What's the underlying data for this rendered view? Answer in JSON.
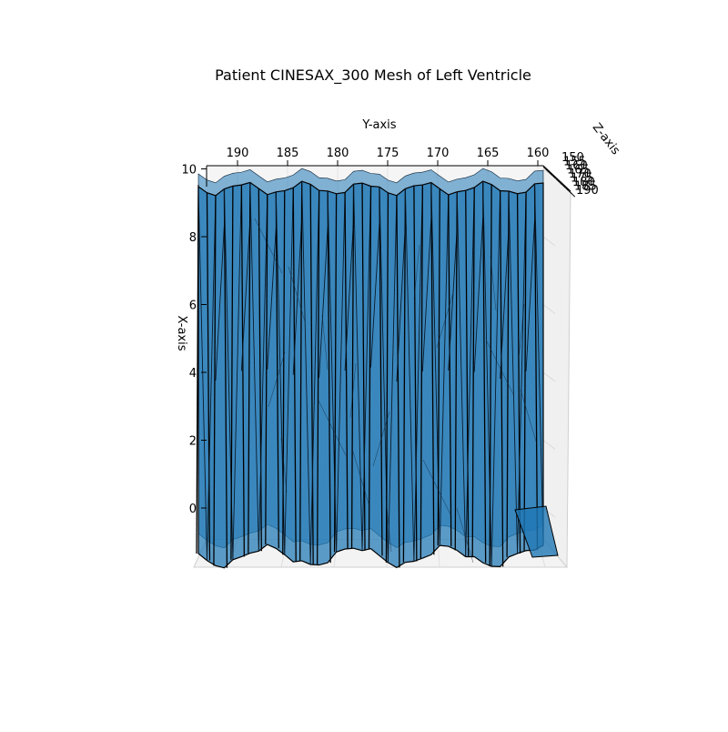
{
  "chart_data": {
    "type": "mesh3d",
    "title": "Patient CINESAX_300 Mesh of Left Ventricle",
    "xlabel": "X-axis",
    "ylabel": "Y-axis",
    "zlabel": "Z-axis",
    "x_ticks": [
      "0",
      "2",
      "4",
      "6",
      "8",
      "10"
    ],
    "y_ticks": [
      "190",
      "185",
      "180",
      "175",
      "170",
      "165",
      "160"
    ],
    "z_ticks": [
      "150",
      "155",
      "160",
      "165",
      "170",
      "175",
      "180",
      "185",
      "190"
    ],
    "xlim": [
      -1.5,
      10
    ],
    "ylim": [
      193,
      158
    ],
    "zlim": [
      150,
      190
    ],
    "face_color": "#1f77b4",
    "face_alpha": 0.6,
    "edge_color": "#000000",
    "pane_color": "#f2f2f2",
    "grid": true
  }
}
